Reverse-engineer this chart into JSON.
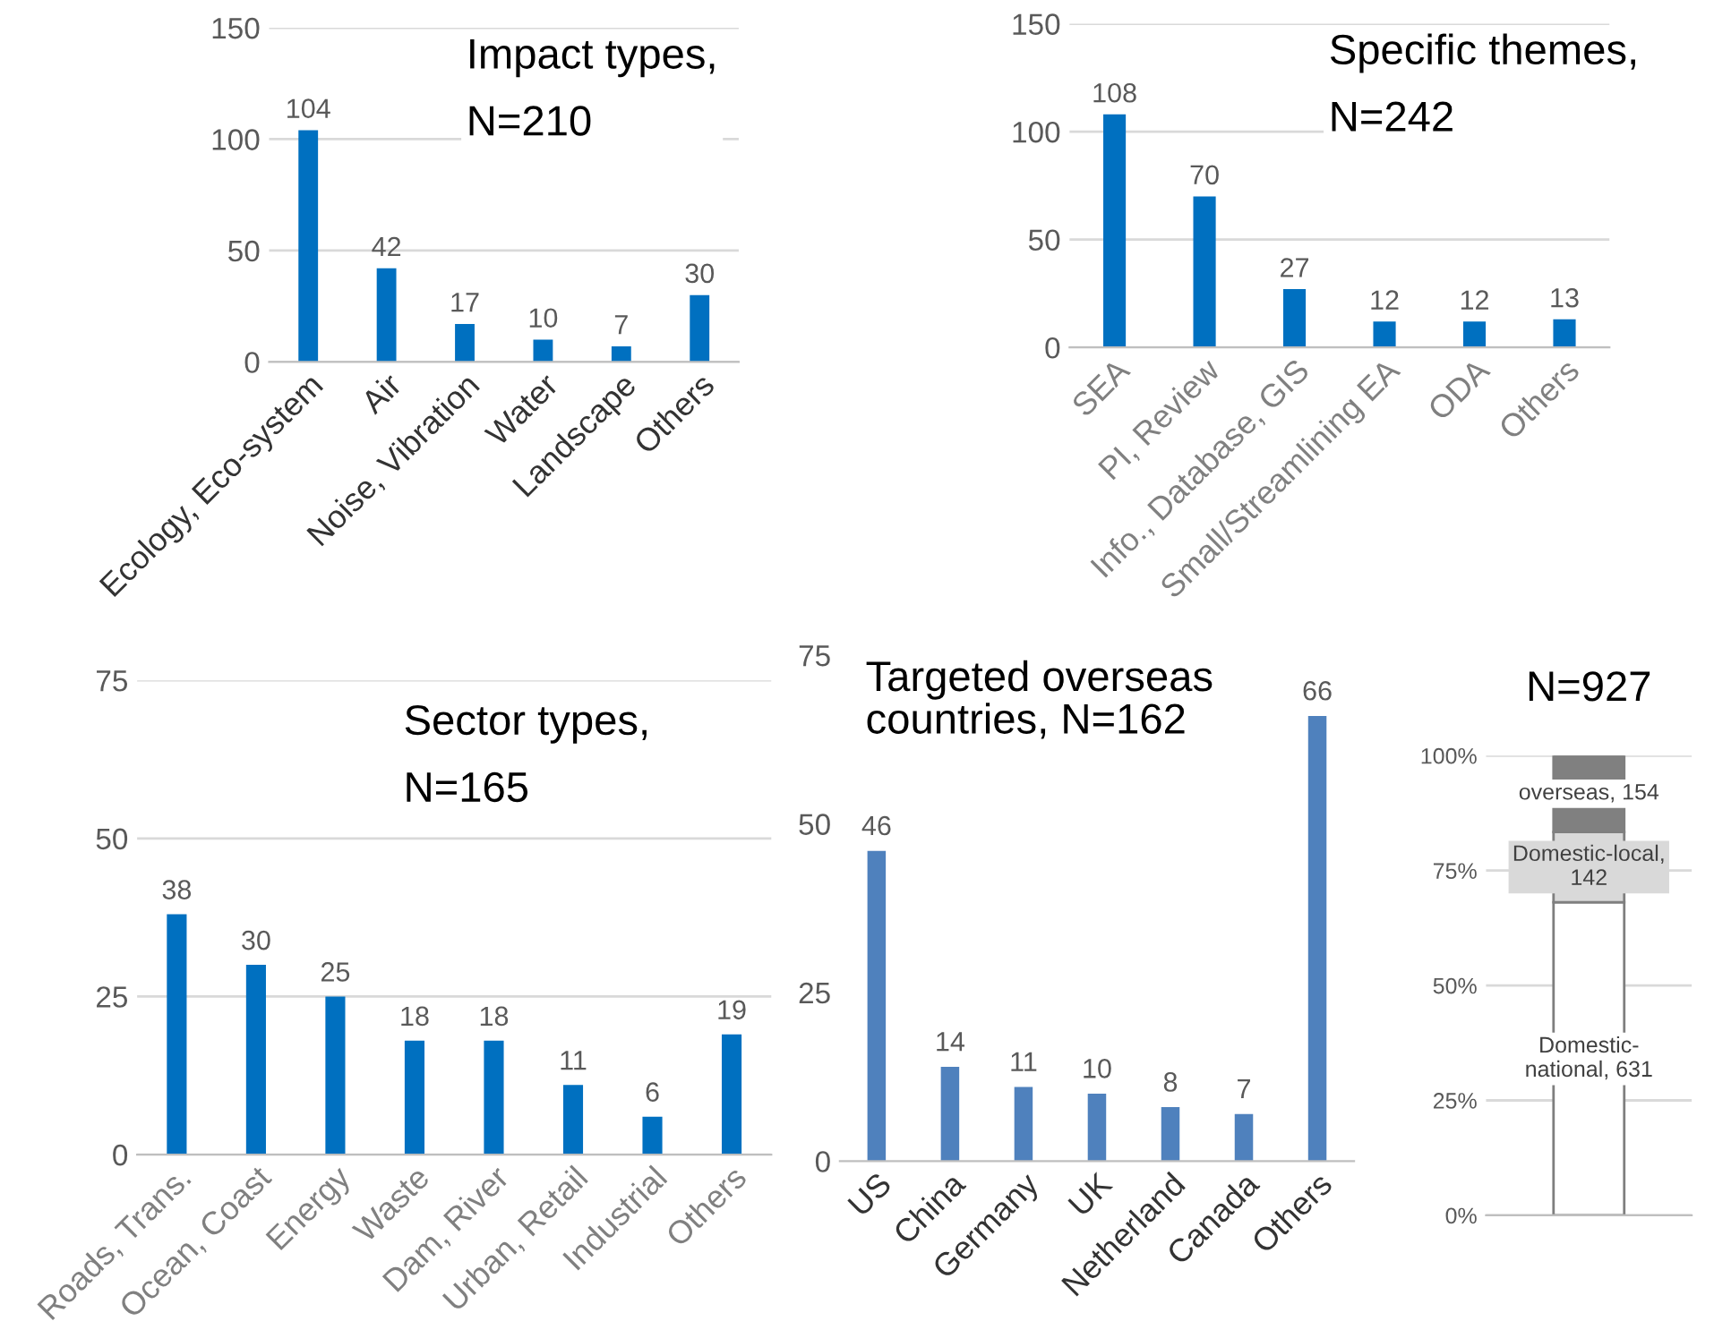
{
  "chart_data": [
    {
      "type": "bar",
      "title": "Impact types,\nN=210",
      "categories": [
        "Ecology, Eco-system",
        "Air",
        "Noise, Vibration",
        "Water",
        "Landscape",
        "Others"
      ],
      "values": [
        104,
        42,
        17,
        10,
        7,
        30
      ],
      "color": "#0070c0",
      "ylim": [
        0,
        150
      ],
      "yticks": [
        0,
        50,
        100,
        150
      ],
      "grid": "y",
      "data_labels": true
    },
    {
      "type": "bar",
      "title": "Specific themes,\nN=242",
      "categories": [
        "SEA",
        "PI, Review",
        "Info., Database, GIS",
        "Small/Streamlining EA",
        "ODA",
        "Others"
      ],
      "values": [
        108,
        70,
        27,
        12,
        12,
        13
      ],
      "color": "#0070c0",
      "ylim": [
        0,
        150
      ],
      "yticks": [
        0,
        50,
        100,
        150
      ],
      "grid": "y",
      "data_labels": true
    },
    {
      "type": "bar",
      "title": "Sector types,\nN=165",
      "categories": [
        "Roads, Trans.",
        "Ocean, Coast",
        "Energy",
        "Waste",
        "Dam, River",
        "Urban, Retail",
        "Industrial",
        "Others"
      ],
      "values": [
        38,
        30,
        25,
        18,
        18,
        11,
        6,
        19
      ],
      "color": "#0070c0",
      "ylim": [
        0,
        75
      ],
      "yticks": [
        0,
        25,
        50,
        75
      ],
      "grid": "y",
      "data_labels": true
    },
    {
      "type": "bar",
      "title": "Targeted overseas\ncountries, N=162",
      "categories": [
        "US",
        "China",
        "Germany",
        "UK",
        "Netherland",
        "Canada",
        "Others"
      ],
      "values": [
        46,
        14,
        11,
        10,
        8,
        7,
        66
      ],
      "color": "#4f81bd",
      "ylim": [
        0,
        75
      ],
      "yticks": [
        0,
        25,
        50,
        75
      ],
      "grid": false,
      "data_labels": true
    },
    {
      "type": "bar",
      "title": "N=927",
      "stacked": true,
      "categories": [
        null
      ],
      "series": [
        {
          "color": "#ffffff",
          "values": [
            68.1
          ]
        },
        {
          "color": "#d9d9d9",
          "values": [
            15.3
          ]
        },
        {
          "color": "#808080",
          "values": [
            16.6
          ]
        }
      ],
      "annotations": [
        "Domestic-\nnational, 631",
        "Domestic-local,\n142",
        "overseas, 154"
      ],
      "ylim": [
        0,
        100
      ],
      "yticks": [
        {
          "value": 0,
          "label": "0%"
        },
        {
          "value": 25,
          "label": "25%"
        },
        {
          "value": 50,
          "label": "50%"
        },
        {
          "value": 75,
          "label": "75%"
        },
        {
          "value": 100,
          "label": "100%"
        }
      ],
      "grid": "y"
    }
  ]
}
